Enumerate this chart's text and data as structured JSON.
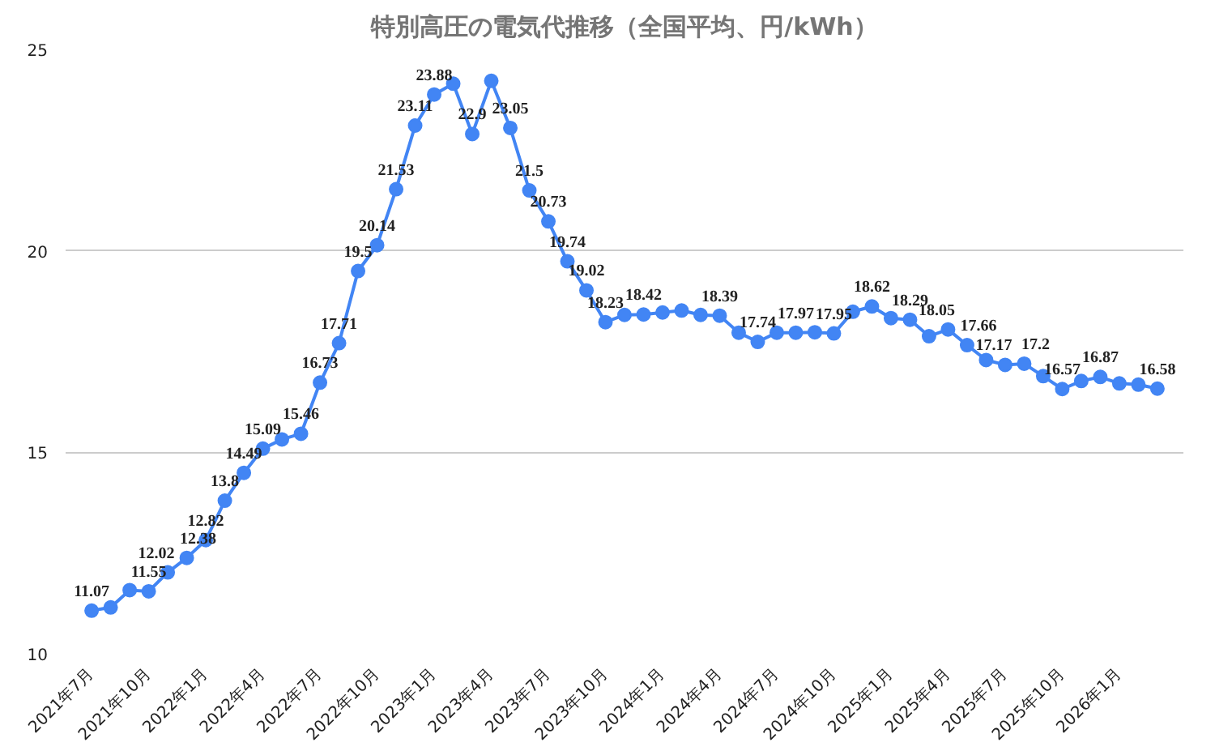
{
  "chart_data": {
    "type": "line",
    "title": "特別高圧の電気代推移（全国平均、円/kWh）",
    "x": [
      "2021-07",
      "2021-08",
      "2021-09",
      "2021-10",
      "2021-11",
      "2021-12",
      "2022-01",
      "2022-02",
      "2022-03",
      "2022-04",
      "2022-05",
      "2022-06",
      "2022-07",
      "2022-08",
      "2022-09",
      "2022-10",
      "2022-11",
      "2022-12",
      "2023-01",
      "2023-02",
      "2023-03",
      "2023-04",
      "2023-05",
      "2023-06",
      "2023-07",
      "2023-08",
      "2023-09",
      "2023-10",
      "2023-11",
      "2023-12",
      "2024-01",
      "2024-02",
      "2024-03",
      "2024-04",
      "2024-05",
      "2024-06",
      "2024-07",
      "2024-08",
      "2024-09",
      "2024-10",
      "2024-11",
      "2024-12",
      "2025-01",
      "2025-02",
      "2025-03",
      "2025-04",
      "2025-05",
      "2025-06",
      "2025-07",
      "2025-08",
      "2025-09",
      "2025-10",
      "2025-11",
      "2025-12",
      "2026-01",
      "2026-02",
      "2026-03"
    ],
    "series": [
      {
        "color": "#4285f4",
        "values": [
          11.07,
          11.15,
          11.58,
          11.55,
          12.02,
          12.38,
          12.82,
          13.8,
          14.49,
          15.09,
          15.32,
          15.46,
          16.73,
          17.71,
          19.5,
          20.14,
          21.53,
          23.11,
          23.88,
          24.15,
          22.9,
          24.22,
          23.05,
          21.5,
          20.73,
          19.74,
          19.02,
          18.23,
          18.41,
          18.42,
          18.47,
          18.52,
          18.41,
          18.39,
          17.97,
          17.74,
          17.97,
          17.97,
          17.98,
          17.95,
          18.49,
          18.62,
          18.33,
          18.29,
          17.88,
          18.05,
          17.66,
          17.29,
          17.17,
          17.2,
          16.89,
          16.57,
          16.77,
          16.87,
          16.71,
          16.68,
          16.58
        ],
        "value_labels": [
          "11.07",
          null,
          null,
          "11.55",
          "12.02",
          "12.38",
          "12.82",
          "13.8",
          "14.49",
          "15.09",
          null,
          "15.46",
          "16.73",
          "17.71",
          "19.5",
          "20.14",
          "21.53",
          "23.11",
          "23.88",
          null,
          "22.9",
          null,
          "23.05",
          "21.5",
          "20.73",
          "19.74",
          "19.02",
          "18.23",
          null,
          "18.42",
          null,
          null,
          null,
          "18.39",
          null,
          "17.74",
          null,
          "17.97",
          null,
          "17.95",
          null,
          "18.62",
          null,
          "18.29",
          null,
          "18.05",
          "17.66",
          null,
          "17.17",
          "17.2",
          null,
          "16.57",
          null,
          "16.87",
          null,
          null,
          "16.58"
        ]
      }
    ],
    "xlim": [
      "2021-05-20",
      "2026-04-12"
    ],
    "xticks": [
      {
        "value": "2021-07",
        "label": "2021年7月"
      },
      {
        "value": "2021-10",
        "label": "2021年10月"
      },
      {
        "value": "2022-01",
        "label": "2022年1月"
      },
      {
        "value": "2022-04",
        "label": "2022年4月"
      },
      {
        "value": "2022-07",
        "label": "2022年7月"
      },
      {
        "value": "2022-10",
        "label": "2022年10月"
      },
      {
        "value": "2023-01",
        "label": "2023年1月"
      },
      {
        "value": "2023-04",
        "label": "2023年4月"
      },
      {
        "value": "2023-07",
        "label": "2023年7月"
      },
      {
        "value": "2023-10",
        "label": "2023年10月"
      },
      {
        "value": "2024-01",
        "label": "2024年1月"
      },
      {
        "value": "2024-04",
        "label": "2024年4月"
      },
      {
        "value": "2024-07",
        "label": "2024年7月"
      },
      {
        "value": "2024-10",
        "label": "2024年10月"
      },
      {
        "value": "2025-01",
        "label": "2025年1月"
      },
      {
        "value": "2025-04",
        "label": "2025年4月"
      },
      {
        "value": "2025-07",
        "label": "2025年7月"
      },
      {
        "value": "2025-10",
        "label": "2025年10月"
      },
      {
        "value": "2026-01",
        "label": "2026年1月"
      }
    ],
    "ylim": [
      10,
      25
    ],
    "yticks": [
      10,
      15,
      20,
      25
    ],
    "grid": "y",
    "marker": "circle",
    "line_style": "solid"
  }
}
